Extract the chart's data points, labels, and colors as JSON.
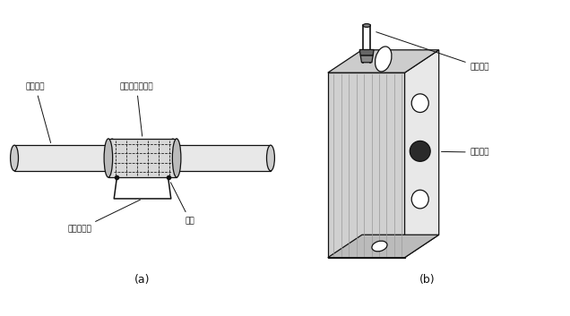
{
  "background_color": "#ffffff",
  "figsize": [
    6.36,
    3.53
  ],
  "dpi": 100,
  "label_a": "(a)",
  "label_b": "(b)",
  "text_labels_a": {
    "weld_pipe": "焊接锂管",
    "sleeve": "套接管（管箍）",
    "ground_wire": "接地跨接线",
    "weld_point": "焊点"
  },
  "text_labels_b": {
    "weld_pipe": "焊接锂管",
    "junction_box": "锂接线盒"
  }
}
